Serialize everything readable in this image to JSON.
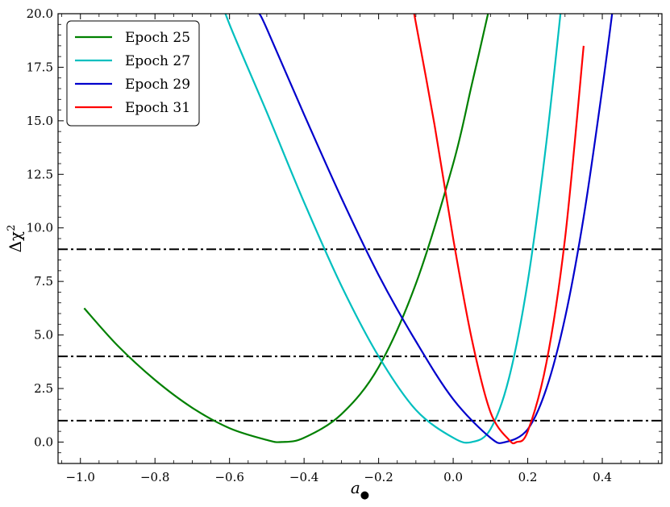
{
  "chart_data": {
    "type": "line",
    "xlabel": "a",
    "xlabel_subscript": "●",
    "ylabel": "Δχ",
    "ylabel_superscript": "2",
    "xlim": [
      -1.06,
      0.56
    ],
    "ylim": [
      -1.0,
      20.0
    ],
    "xticks": [
      -1.0,
      -0.8,
      -0.6,
      -0.4,
      -0.2,
      0.0,
      0.2,
      0.4
    ],
    "xtick_labels": [
      "−1.0",
      "−0.8",
      "−0.6",
      "−0.4",
      "−0.2",
      "0.0",
      "0.2",
      "0.4"
    ],
    "yticks": [
      0.0,
      2.5,
      5.0,
      7.5,
      10.0,
      12.5,
      15.0,
      17.5,
      20.0
    ],
    "ytick_labels": [
      "0.0",
      "2.5",
      "5.0",
      "7.5",
      "10.0",
      "12.5",
      "15.0",
      "17.5",
      "20.0"
    ],
    "grid": false,
    "legend_position": "top-left",
    "reference_lines": [
      {
        "y": 1.0,
        "style": "dash-dot",
        "color": "#000000"
      },
      {
        "y": 4.0,
        "style": "dash-dot",
        "color": "#000000"
      },
      {
        "y": 9.0,
        "style": "dash-dot",
        "color": "#000000"
      }
    ],
    "series": [
      {
        "name": "Epoch 25",
        "color": "#008000",
        "x": [
          -0.99,
          -0.9,
          -0.8,
          -0.7,
          -0.6,
          -0.5,
          -0.46,
          -0.4,
          -0.3,
          -0.2,
          -0.1,
          0.0,
          0.05,
          0.1,
          0.13
        ],
        "y": [
          6.25,
          4.5,
          2.9,
          1.6,
          0.65,
          0.1,
          0.0,
          0.2,
          1.3,
          3.5,
          7.4,
          13.0,
          16.7,
          20.5,
          23.0
        ]
      },
      {
        "name": "Epoch 27",
        "color": "#00BFBF",
        "x": [
          -0.64,
          -0.6,
          -0.5,
          -0.4,
          -0.3,
          -0.2,
          -0.1,
          0.0,
          0.05,
          0.1,
          0.15,
          0.2,
          0.25,
          0.3
        ],
        "y": [
          21.5,
          19.5,
          15.4,
          11.2,
          7.3,
          4.0,
          1.5,
          0.2,
          0.0,
          0.6,
          3.0,
          7.5,
          14.0,
          22.0
        ]
      },
      {
        "name": "Epoch 29",
        "color": "#0000CC",
        "x": [
          -0.52,
          -0.5,
          -0.4,
          -0.3,
          -0.2,
          -0.1,
          0.0,
          0.1,
          0.14,
          0.2,
          0.25,
          0.3,
          0.35,
          0.4,
          0.43
        ],
        "y": [
          20.0,
          19.3,
          15.3,
          11.4,
          7.8,
          4.7,
          2.0,
          0.2,
          0.0,
          0.6,
          2.5,
          5.8,
          10.5,
          16.5,
          20.5
        ]
      },
      {
        "name": "Epoch 31",
        "color": "#FF0000",
        "x": [
          -0.11,
          -0.05,
          0.0,
          0.05,
          0.1,
          0.15,
          0.17,
          0.2,
          0.25,
          0.3,
          0.35
        ],
        "y": [
          20.5,
          14.8,
          9.5,
          4.8,
          1.4,
          0.1,
          0.0,
          0.5,
          3.7,
          9.5,
          18.5
        ]
      }
    ]
  }
}
